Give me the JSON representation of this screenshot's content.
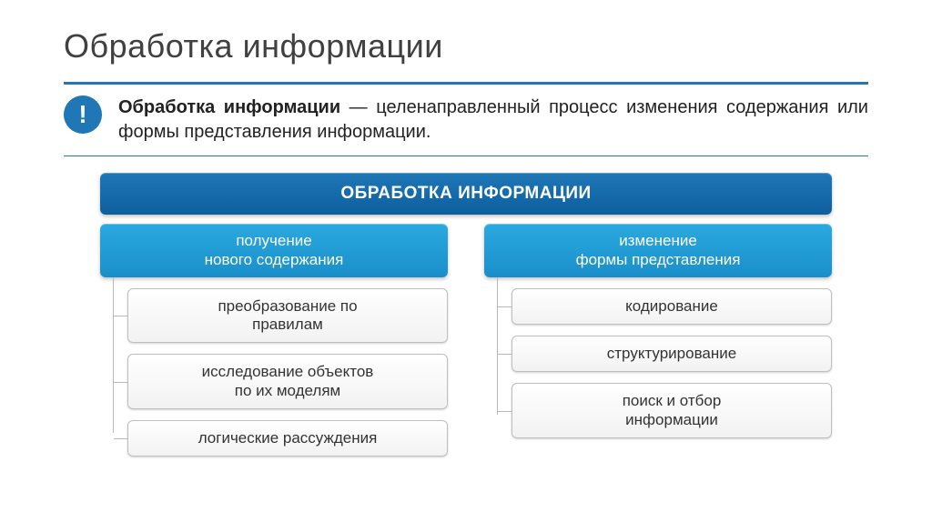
{
  "title": "Обработка информации",
  "definition": {
    "icon_symbol": "!",
    "icon_bg": "#1f77b6",
    "icon_fg": "#ffffff",
    "bold_term": "Обработка информации",
    "rest_text": " — целенаправленный процесс изменения содержания или формы представления информации."
  },
  "diagram": {
    "type": "tree",
    "root": {
      "label": "ОБРАБОТКА ИНФОРМАЦИИ",
      "bg": "#1f77b6",
      "fg": "#ffffff",
      "fontsize": 19
    },
    "category_style": {
      "bg": "#2aa9e0",
      "fg": "#ffffff",
      "fontsize": 17
    },
    "item_style": {
      "bg": "#f7f7f7",
      "fg": "#333333",
      "border": "#bfbfbf",
      "fontsize": 17
    },
    "connector_color": "#b8b8b8",
    "branches": [
      {
        "category": "получение\nнового содержания",
        "items": [
          "преобразование по\nправилам",
          "исследование объектов\nпо их моделям",
          "логические рассуждения"
        ]
      },
      {
        "category": "изменение\nформы представления",
        "items": [
          "кодирование",
          "структурирование",
          "поиск и отбор\nинформации"
        ]
      }
    ]
  },
  "colors": {
    "line_primary": "#1f77b6",
    "background": "#ffffff",
    "title_color": "#404040"
  }
}
